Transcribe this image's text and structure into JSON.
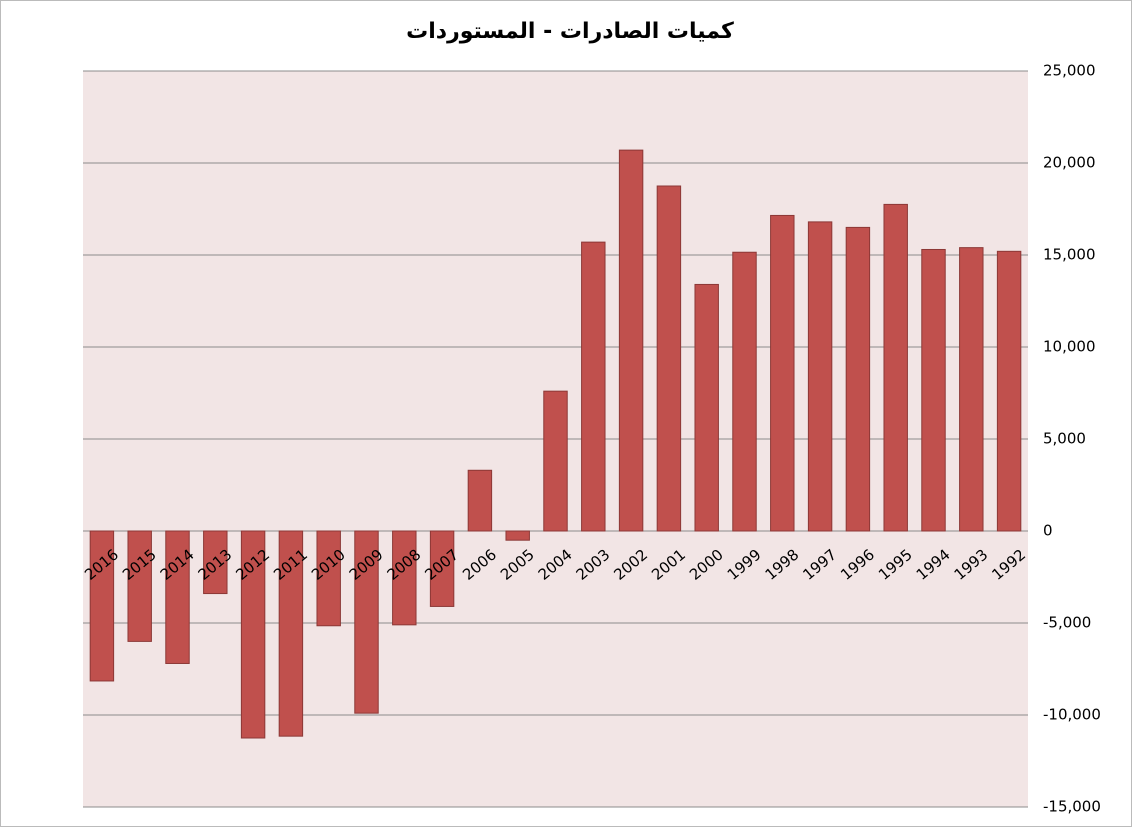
{
  "chart_data": {
    "type": "bar",
    "title": "كميات الصادرات - المستوردات",
    "categories": [
      "2016",
      "2015",
      "2014",
      "2013",
      "2012",
      "2011",
      "2010",
      "2009",
      "2008",
      "2007",
      "2006",
      "2005",
      "2004",
      "2003",
      "2002",
      "2001",
      "2000",
      "1999",
      "1998",
      "1997",
      "1996",
      "1995",
      "1994",
      "1993",
      "1992"
    ],
    "values": [
      -8150,
      -6000,
      -7200,
      -3400,
      -11250,
      -11150,
      -5150,
      -9900,
      -5100,
      -4100,
      3300,
      -500,
      7600,
      15700,
      20700,
      18750,
      13400,
      15150,
      17150,
      16800,
      16500,
      17750,
      15300,
      15400,
      15200
    ],
    "color": "#c0504d",
    "ylim": [
      -15000,
      25000
    ],
    "yticks": [
      {
        "value": -15000,
        "label": "-15,000"
      },
      {
        "value": -10000,
        "label": "-10,000"
      },
      {
        "value": -5000,
        "label": "-5,000"
      },
      0,
      {
        "value": 5000,
        "label": "5,000"
      },
      {
        "value": 10000,
        "label": "10,000"
      },
      {
        "value": 15000,
        "label": "15,000"
      },
      {
        "value": 20000,
        "label": "20,000"
      },
      {
        "value": 25000,
        "label": "25,000"
      }
    ],
    "grid": true,
    "y_axis_side": "right"
  }
}
